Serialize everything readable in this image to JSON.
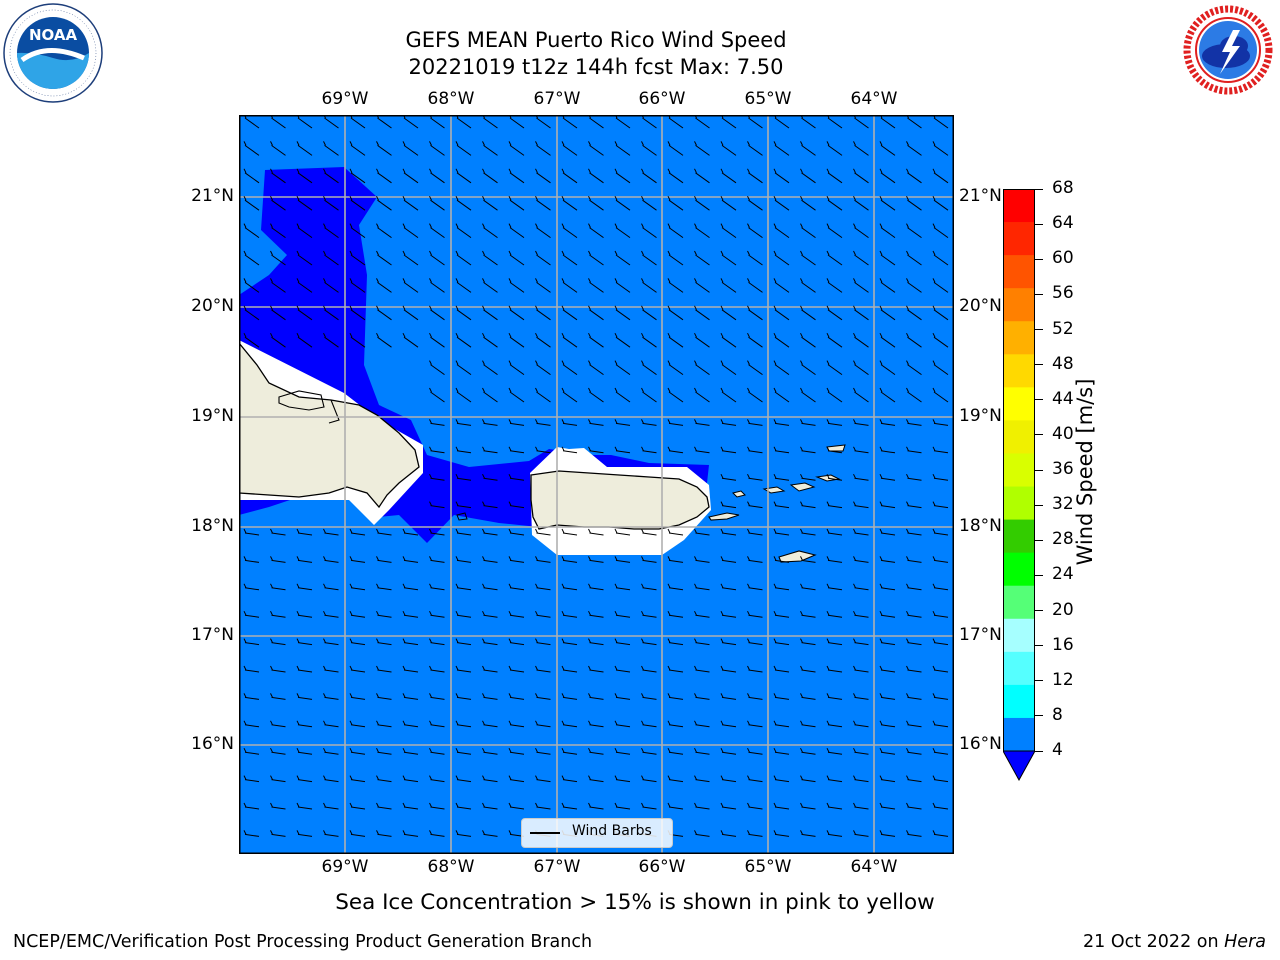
{
  "header": {
    "title_line1": "GEFS MEAN Puerto Rico Wind Speed",
    "title_line2": "20221019 t12z 144h fcst   Max: 7.50"
  },
  "logos": {
    "noaa": {
      "text": "NOAA",
      "ring_text": "NATIONAL OCEANIC AND ATMOSPHERIC ADMINISTRATION · U.S. DEPARTMENT OF COMMERCE",
      "icon": "noaa-logo-icon"
    },
    "nws": {
      "ring_text": "NATIONAL WEATHER SERVICE",
      "icon": "nws-logo-icon"
    }
  },
  "map": {
    "longitude_labels": [
      "69°W",
      "68°W",
      "67°W",
      "66°W",
      "65°W",
      "64°W"
    ],
    "latitude_labels": [
      "21°N",
      "20°N",
      "19°N",
      "18°N",
      "17°N",
      "16°N"
    ],
    "legend_label": "Wind Barbs",
    "colors": {
      "ocean_light": "#0080ff",
      "ocean_dark": "#0000ff",
      "land": "#eeeddc",
      "gridline": "#b0b0b0"
    }
  },
  "colorbar": {
    "label": "Wind Speed [m/s]",
    "ticks": [
      "68",
      "64",
      "60",
      "56",
      "52",
      "48",
      "44",
      "40",
      "36",
      "32",
      "28",
      "24",
      "20",
      "16",
      "12",
      "8",
      "4"
    ],
    "colors_top_to_bottom": [
      "#ff0000",
      "#ff2600",
      "#ff5400",
      "#ff8000",
      "#ffb000",
      "#ffd900",
      "#ffff00",
      "#f0f000",
      "#d9ff00",
      "#b0ff00",
      "#33cc00",
      "#00ff00",
      "#55ff77",
      "#a6ffff",
      "#55ffff",
      "#00ffff",
      "#0080ff"
    ],
    "extend_color": "#0000ff"
  },
  "note": "Sea Ice Concentration > 15% is shown in pink to yellow",
  "footer": {
    "left": "NCEP/EMC/Verification Post Processing Product Generation Branch",
    "right_date": "21 Oct 2022 on ",
    "right_host": "Hera"
  }
}
